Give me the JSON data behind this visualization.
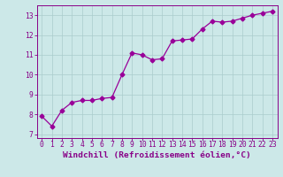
{
  "x": [
    0,
    1,
    2,
    3,
    4,
    5,
    6,
    7,
    8,
    9,
    10,
    11,
    12,
    13,
    14,
    15,
    16,
    17,
    18,
    19,
    20,
    21,
    22,
    23
  ],
  "y": [
    7.9,
    7.4,
    8.2,
    8.6,
    8.7,
    8.7,
    8.8,
    8.85,
    10.0,
    11.1,
    11.0,
    10.75,
    10.8,
    11.7,
    11.75,
    11.8,
    12.3,
    12.7,
    12.65,
    12.7,
    12.85,
    13.0,
    13.1,
    13.2
  ],
  "line_color": "#990099",
  "marker": "D",
  "marker_size": 2.5,
  "bg_color": "#cce8e8",
  "grid_color": "#aacccc",
  "xlim": [
    -0.5,
    23.5
  ],
  "ylim": [
    6.8,
    13.5
  ],
  "yticks": [
    7,
    8,
    9,
    10,
    11,
    12,
    13
  ],
  "xticks": [
    0,
    1,
    2,
    3,
    4,
    5,
    6,
    7,
    8,
    9,
    10,
    11,
    12,
    13,
    14,
    15,
    16,
    17,
    18,
    19,
    20,
    21,
    22,
    23
  ],
  "xlabel": "Windchill (Refroidissement éolien,°C)",
  "xlabel_color": "#880088",
  "tick_color": "#880088",
  "axis_color": "#880088",
  "label_fontsize": 6.8,
  "tick_fontsize": 5.8
}
